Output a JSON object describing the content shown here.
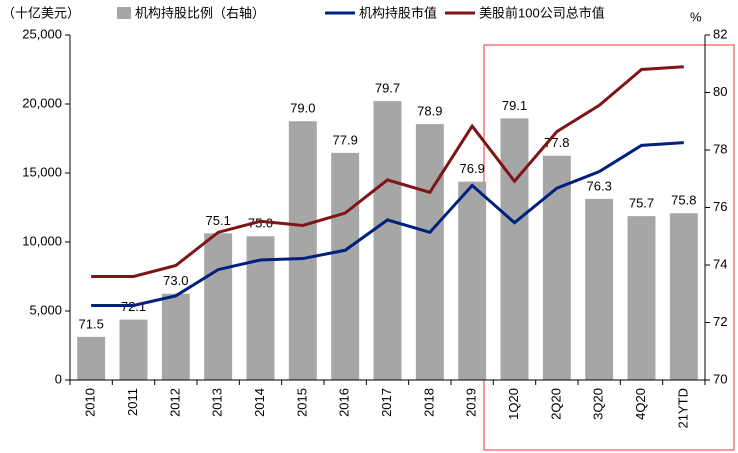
{
  "chart_data": {
    "type": "bar",
    "y_unit_label": "（十亿美元）",
    "y2_unit_label": "%",
    "categories": [
      "2010",
      "2011",
      "2012",
      "2013",
      "2014",
      "2015",
      "2016",
      "2017",
      "2018",
      "2019",
      "1Q20",
      "2Q20",
      "3Q20",
      "4Q20",
      "21YTD"
    ],
    "series": [
      {
        "name": "机构持股比例（右轴）",
        "type": "bar",
        "axis": "y2",
        "color": "#a6a6a6",
        "values": [
          71.5,
          72.1,
          73.0,
          75.1,
          75.0,
          79.0,
          77.9,
          79.7,
          78.9,
          76.9,
          79.1,
          77.8,
          76.3,
          75.7,
          75.8
        ],
        "value_labels": [
          "71.5",
          "72.1",
          "73.0",
          "75.1",
          "75.0",
          "79.0",
          "77.9",
          "79.7",
          "78.9",
          "76.9",
          "79.1",
          "77.8",
          "76.3",
          "75.7",
          "75.8"
        ]
      },
      {
        "name": "机构持股市值",
        "type": "line",
        "color": "#002080",
        "values": [
          5400,
          5400,
          6100,
          8000,
          8700,
          8800,
          9400,
          11600,
          10700,
          14100,
          11400,
          13900,
          15100,
          17000,
          17200
        ]
      },
      {
        "name": "美股前100公司总市值",
        "type": "line",
        "color": "#7f1418",
        "values": [
          7500,
          7500,
          8300,
          10700,
          11500,
          11200,
          12100,
          14500,
          13600,
          18400,
          14400,
          18000,
          19900,
          22500,
          22700
        ]
      }
    ],
    "ylim": [
      0,
      25000
    ],
    "yticks": [
      0,
      {
        "value": 5000,
        "label": "5,000"
      },
      {
        "value": 10000,
        "label": "10,000"
      },
      {
        "value": 15000,
        "label": "15,000"
      },
      {
        "value": 20000,
        "label": "20,000"
      },
      {
        "value": 25000,
        "label": "25,000"
      }
    ],
    "y2lim": [
      70,
      82
    ],
    "y2ticks": [
      70,
      72,
      74,
      76,
      78,
      80,
      82
    ],
    "grid": false
  }
}
